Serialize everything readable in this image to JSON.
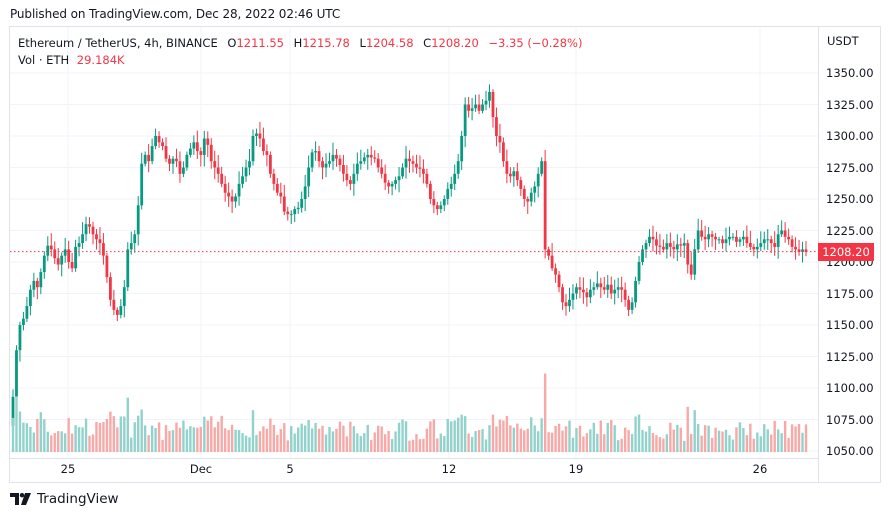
{
  "header": {
    "published": "Published on TradingView.com, Dec 28, 2022 02:46 UTC"
  },
  "legend": {
    "symbol": "Ethereum / TetherUS, 4h, BINANCE",
    "open_label": "O",
    "open": "1211.55",
    "high_label": "H",
    "high": "1215.78",
    "low_label": "L",
    "low": "1204.58",
    "close_label": "C",
    "close": "1208.20",
    "change": "−3.35 (−0.28%)",
    "volume_label": "Vol · ETH",
    "volume": "29.184K"
  },
  "price_axis": {
    "unit": "USDT",
    "current_price": "1208.20",
    "ticks": [
      "1350.00",
      "1325.00",
      "1300.00",
      "1275.00",
      "1250.00",
      "1225.00",
      "1200.00",
      "1175.00",
      "1150.00",
      "1125.00",
      "1100.00",
      "1075.00",
      "1050.00"
    ]
  },
  "time_axis": {
    "ticks": [
      "25",
      "Dec",
      "5",
      "12",
      "19",
      "26"
    ]
  },
  "footer": {
    "brand": "TradingView",
    "logo_icon": "tradingview-logo-icon"
  },
  "colors": {
    "up": "#089981",
    "down": "#f23645",
    "up_volume": "#92d2cc",
    "down_volume": "#f7a9a7",
    "grid": "#f0f3fa",
    "price_line": "#f23645"
  },
  "chart_data": {
    "type": "candlestick",
    "title": "Ethereum / TetherUS, 4h, BINANCE",
    "xlabel": "",
    "ylabel": "USDT",
    "ylim": [
      1040,
      1362
    ],
    "grid": true,
    "x_ticks": [
      "25",
      "Dec",
      "5",
      "12",
      "19",
      "26"
    ],
    "y_ticks": [
      1050,
      1075,
      1100,
      1125,
      1150,
      1175,
      1200,
      1225,
      1250,
      1275,
      1300,
      1325,
      1350
    ],
    "current_price": 1208.2,
    "last_candle": {
      "open": 1211.55,
      "high": 1215.78,
      "low": 1204.58,
      "close": 1208.2,
      "volume": "29.184K"
    },
    "closes_approx": [
      1093,
      1130,
      1150,
      1155,
      1165,
      1178,
      1185,
      1180,
      1192,
      1205,
      1213,
      1210,
      1203,
      1198,
      1205,
      1210,
      1200,
      1195,
      1212,
      1215,
      1222,
      1230,
      1228,
      1222,
      1218,
      1215,
      1205,
      1188,
      1170,
      1162,
      1158,
      1165,
      1180,
      1210,
      1215,
      1222,
      1245,
      1278,
      1285,
      1280,
      1292,
      1300,
      1295,
      1292,
      1282,
      1278,
      1282,
      1280,
      1270,
      1275,
      1285,
      1290,
      1295,
      1288,
      1285,
      1298,
      1293,
      1280,
      1275,
      1270,
      1262,
      1255,
      1252,
      1248,
      1252,
      1262,
      1268,
      1275,
      1280,
      1300,
      1302,
      1298,
      1288,
      1285,
      1270,
      1262,
      1255,
      1252,
      1240,
      1238,
      1238,
      1242,
      1243,
      1250,
      1260,
      1275,
      1287,
      1288,
      1280,
      1275,
      1278,
      1280,
      1285,
      1282,
      1277,
      1270,
      1265,
      1262,
      1270,
      1278,
      1280,
      1283,
      1285,
      1283,
      1282,
      1275,
      1270,
      1263,
      1260,
      1262,
      1265,
      1268,
      1275,
      1282,
      1280,
      1278,
      1275,
      1274,
      1270,
      1262,
      1250,
      1245,
      1242,
      1245,
      1250,
      1258,
      1262,
      1270,
      1280,
      1300,
      1325,
      1320,
      1322,
      1325,
      1320,
      1325,
      1328,
      1335,
      1315,
      1300,
      1295,
      1280,
      1270,
      1268,
      1272,
      1265,
      1258,
      1250,
      1248,
      1255,
      1260,
      1270,
      1280,
      1210,
      1205,
      1195,
      1190,
      1180,
      1168,
      1165,
      1170,
      1175,
      1180,
      1178,
      1176,
      1172,
      1178,
      1180,
      1183,
      1180,
      1178,
      1182,
      1175,
      1178,
      1180,
      1178,
      1170,
      1162,
      1168,
      1185,
      1200,
      1210,
      1215,
      1220,
      1218,
      1213,
      1212,
      1210,
      1215,
      1212,
      1210,
      1214,
      1213,
      1215,
      1198,
      1190,
      1210,
      1225,
      1220,
      1218,
      1222,
      1220,
      1218,
      1218,
      1215,
      1218,
      1220,
      1220,
      1216,
      1218,
      1220,
      1215,
      1212,
      1210,
      1212,
      1215,
      1218,
      1218,
      1215,
      1212,
      1222,
      1225,
      1220,
      1218,
      1212,
      1210,
      1208,
      1210,
      1208
    ]
  }
}
